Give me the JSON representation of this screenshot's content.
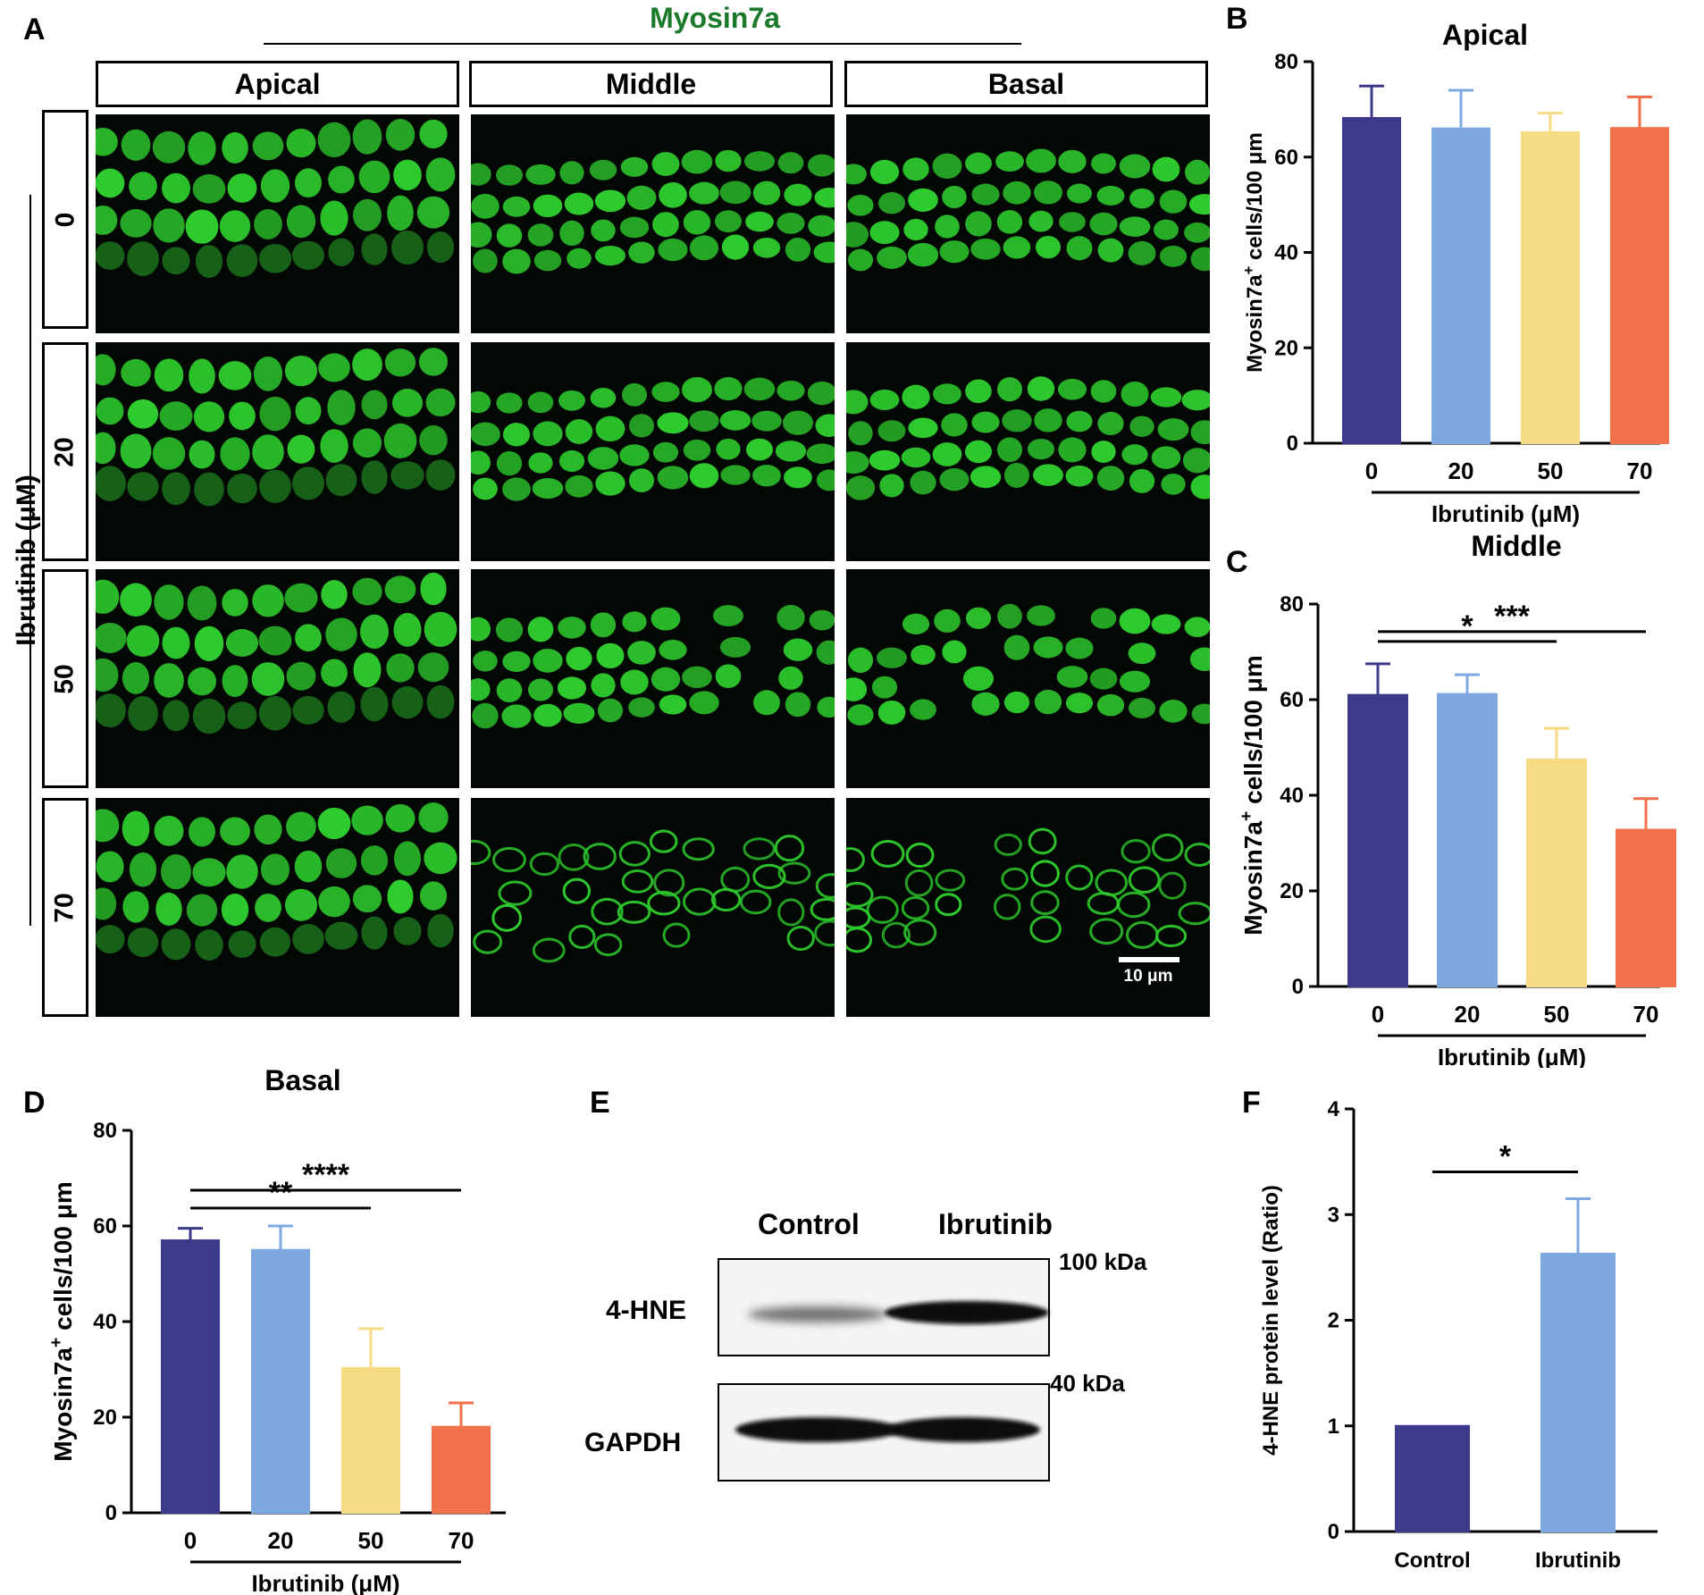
{
  "panelA": {
    "letter": "A",
    "stain_title": "Myosin7a",
    "stain_color": "#1a7a2a",
    "regions": [
      "Apical",
      "Middle",
      "Basal"
    ],
    "doses": [
      "0",
      "20",
      "50",
      "70"
    ],
    "dose_axis_label": "Ibrutinib (μM)",
    "scale_bar_label": "10 μm",
    "cell_color": "#2ecc2e"
  },
  "panelE": {
    "letter": "E",
    "lanes": [
      "Control",
      "Ibrutinib"
    ],
    "bands": [
      "4-HNE",
      "GAPDH"
    ],
    "markers": [
      "100 kDa",
      "40 kDa"
    ]
  },
  "colors": {
    "dose0": "#3d3a8c",
    "dose20": "#7fa8e0",
    "dose50": "#f7db84",
    "dose70": "#f0714a"
  },
  "chart_data": [
    {
      "panel": "B",
      "type": "bar",
      "title": "Apical",
      "categories": [
        "0",
        "20",
        "50",
        "70"
      ],
      "values": [
        68.2,
        66.0,
        65.2,
        66.1
      ],
      "errors": [
        6.7,
        8.0,
        4.0,
        6.5
      ],
      "xlabel": "Ibrutinib (μM)",
      "ylabel": "Myosin7a+ cells/100 μm",
      "ylim": [
        0,
        80
      ],
      "yticks": [
        0,
        20,
        40,
        60,
        80
      ],
      "significance": []
    },
    {
      "panel": "C",
      "type": "bar",
      "title": "Middle",
      "categories": [
        "0",
        "20",
        "50",
        "70"
      ],
      "values": [
        61.0,
        61.2,
        47.5,
        32.8
      ],
      "errors": [
        6.5,
        4.0,
        6.5,
        6.5
      ],
      "xlabel": "Ibrutinib (μM)",
      "ylabel": "Myosin7a+ cells/100 μm",
      "ylim": [
        0,
        80
      ],
      "yticks": [
        0,
        20,
        40,
        60,
        80
      ],
      "significance": [
        {
          "from": 0,
          "to": 2,
          "label": "*"
        },
        {
          "from": 0,
          "to": 3,
          "label": "***"
        }
      ]
    },
    {
      "panel": "D",
      "type": "bar",
      "title": "Basal",
      "categories": [
        "0",
        "20",
        "50",
        "70"
      ],
      "values": [
        57.0,
        55.0,
        30.3,
        18.0
      ],
      "errors": [
        2.5,
        5.0,
        8.2,
        5.0
      ],
      "xlabel": "Ibrutinib (μM)",
      "ylabel": "Myosin7a+ cells/100 μm",
      "ylim": [
        0,
        80
      ],
      "yticks": [
        0,
        20,
        40,
        60,
        80
      ],
      "significance": [
        {
          "from": 0,
          "to": 2,
          "label": "**"
        },
        {
          "from": 0,
          "to": 3,
          "label": "****"
        }
      ]
    },
    {
      "panel": "F",
      "type": "bar",
      "title": "",
      "categories": [
        "Control",
        "Ibrutinib"
      ],
      "values": [
        1.0,
        2.63
      ],
      "errors": [
        0,
        0.52
      ],
      "xlabel": "",
      "ylabel": "4-HNE protein level (Ratio)",
      "ylim": [
        0,
        4
      ],
      "yticks": [
        0,
        1,
        2,
        3,
        4
      ],
      "significance": [
        {
          "from": 0,
          "to": 1,
          "label": "*"
        }
      ]
    }
  ]
}
